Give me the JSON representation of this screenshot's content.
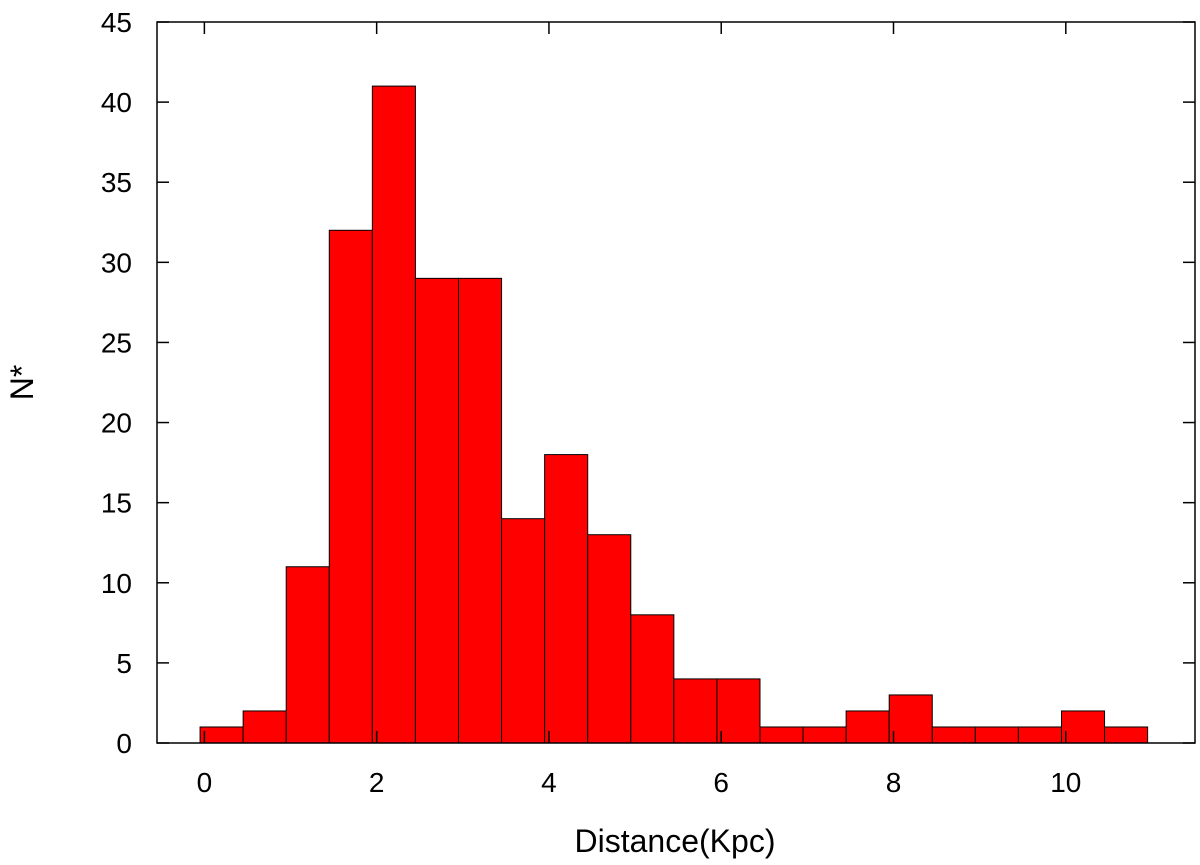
{
  "chart_data": {
    "type": "bar",
    "title": "",
    "xlabel": "Distance(Kpc)",
    "ylabel": "N*",
    "bin_width": 0.5,
    "x_bin_starts": [
      -0.05,
      0.45,
      0.95,
      1.45,
      1.95,
      2.45,
      2.95,
      3.45,
      3.95,
      4.45,
      4.95,
      5.45,
      5.95,
      6.45,
      6.95,
      7.45,
      7.95,
      8.45,
      8.95,
      9.45,
      9.95,
      10.45
    ],
    "values": [
      1,
      2,
      11,
      32,
      41,
      29,
      29,
      14,
      18,
      13,
      8,
      4,
      4,
      1,
      1,
      2,
      3,
      1,
      1,
      1,
      2,
      1
    ],
    "xlim": [
      -0.55,
      11.5
    ],
    "ylim": [
      0,
      45
    ],
    "xticks": [
      0,
      2,
      4,
      6,
      8,
      10
    ],
    "yticks": [
      0,
      5,
      10,
      15,
      20,
      25,
      30,
      35,
      40,
      45
    ],
    "bar_color": "#ff0000",
    "grid": false,
    "legend": "none"
  }
}
